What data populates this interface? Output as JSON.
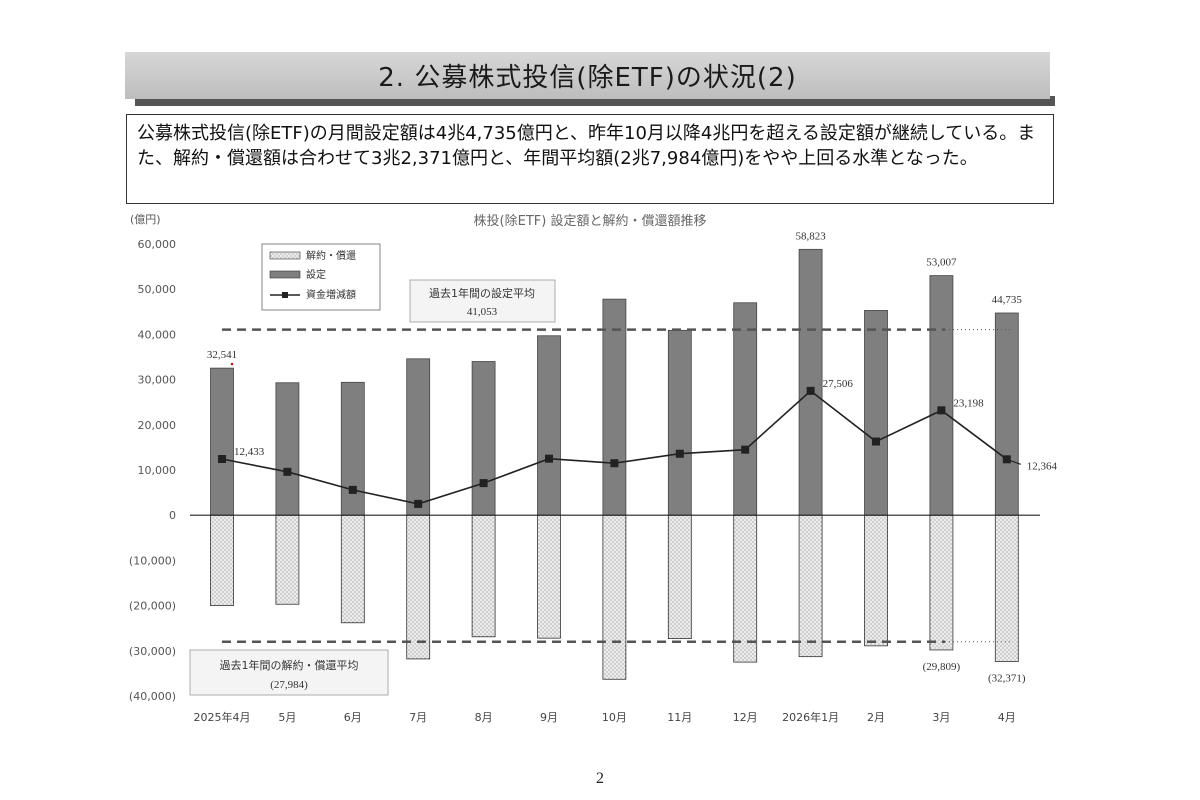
{
  "header": {
    "title": "2. 公募株式投信(除ETF)の状況(2)"
  },
  "summary": {
    "text": "公募株式投信(除ETF)の月間設定額は4兆4,735億円と、昨年10月以降4兆円を超える設定額が継続している。また、解約・償還額は合わせて3兆2,371億円と、年間平均額(2兆7,984億円)をやや上回る水準となった。"
  },
  "colors": {
    "subscription_bar": "#7f7f7f",
    "redemption_bar": "#e4e4e4",
    "net_flow_line": "#222222",
    "average_line": "#555555"
  },
  "chart_data": {
    "type": "bar",
    "title": "株投(除ETF) 設定額と解約・償還額推移",
    "ylabel": "(億円)",
    "ylim": [
      -40000,
      60000
    ],
    "yticks": [
      "60,000",
      "50,000",
      "40,000",
      "30,000",
      "20,000",
      "10,000",
      "0",
      "(10,000)",
      "(20,000)",
      "(30,000)",
      "(40,000)"
    ],
    "categories": [
      "2025年4月",
      "5月",
      "6月",
      "7月",
      "8月",
      "9月",
      "10月",
      "11月",
      "12月",
      "2026年1月",
      "2月",
      "3月",
      "4月"
    ],
    "series": [
      {
        "name": "解約・償還",
        "values": [
          -20000,
          -19700,
          -23800,
          -31800,
          -26900,
          -27200,
          -36300,
          -27300,
          -32500,
          -31300,
          -28900,
          -29809,
          -32371
        ]
      },
      {
        "name": "設定",
        "values": [
          32541,
          29300,
          29400,
          34600,
          34000,
          39700,
          47800,
          40900,
          47000,
          58823,
          45300,
          53007,
          44735
        ]
      },
      {
        "name": "資金増減額",
        "values": [
          12433,
          9600,
          5600,
          2500,
          7100,
          12500,
          11500,
          13600,
          14500,
          27506,
          16300,
          23198,
          12364
        ]
      }
    ],
    "data_labels": {
      "subscription": [
        {
          "index": 0,
          "text": "32,541"
        },
        {
          "index": 9,
          "text": "58,823"
        },
        {
          "index": 11,
          "text": "53,007"
        },
        {
          "index": 12,
          "text": "44,735"
        }
      ],
      "net": [
        {
          "index": 0,
          "text": "12,433"
        },
        {
          "index": 9,
          "text": "27,506"
        },
        {
          "index": 11,
          "text": "23,198"
        },
        {
          "index": 12,
          "text": "12,364"
        }
      ],
      "redemption": [
        {
          "index": 11,
          "text": "(29,809)"
        },
        {
          "index": 12,
          "text": "(32,371)"
        }
      ]
    },
    "reference_lines": [
      {
        "value": 41053,
        "label": "過去1年間の設定平均",
        "value_text": "41,053"
      },
      {
        "value": -27984,
        "label": "過去1年間の解約・償還平均",
        "value_text": "(27,984)"
      }
    ],
    "legend": {
      "placement": "top-left",
      "entries": [
        "解約・償還",
        "設定",
        "資金増減額"
      ]
    },
    "grid": false
  },
  "footer": {
    "page_number": "2"
  }
}
